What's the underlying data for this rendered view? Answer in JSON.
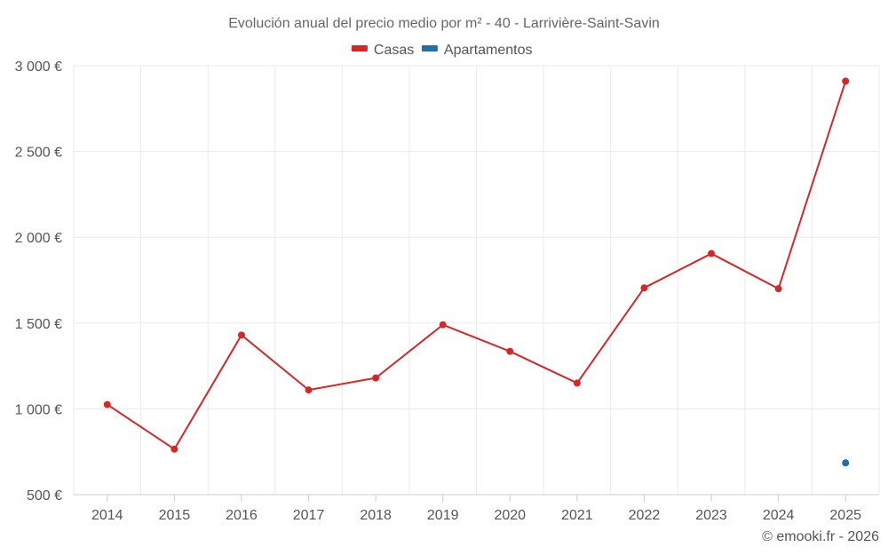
{
  "chart_data": {
    "type": "line",
    "title": "Evolución anual del precio medio por m² - 40 - Larrivière-Saint-Savin",
    "categories": [
      "2014",
      "2015",
      "2016",
      "2017",
      "2018",
      "2019",
      "2020",
      "2021",
      "2022",
      "2023",
      "2024",
      "2025"
    ],
    "series": [
      {
        "name": "Casas",
        "color": "#d62728",
        "values": [
          1025,
          765,
          1430,
          1110,
          1180,
          1490,
          1335,
          1150,
          1705,
          1905,
          1700,
          2910
        ]
      },
      {
        "name": "Apartamentos",
        "color": "#1f6fa8",
        "values": [
          null,
          null,
          null,
          null,
          null,
          null,
          null,
          null,
          null,
          null,
          null,
          685
        ]
      }
    ],
    "ylim": [
      500,
      3000
    ],
    "yticks": [
      500,
      1000,
      1500,
      2000,
      2500,
      3000
    ],
    "ytick_labels": [
      "500 €",
      "1 000 €",
      "1 500 €",
      "2 000 €",
      "2 500 €",
      "3 000 €"
    ],
    "grid": true,
    "legend_position": "top-center"
  },
  "credit": "© emooki.fr - 2026"
}
